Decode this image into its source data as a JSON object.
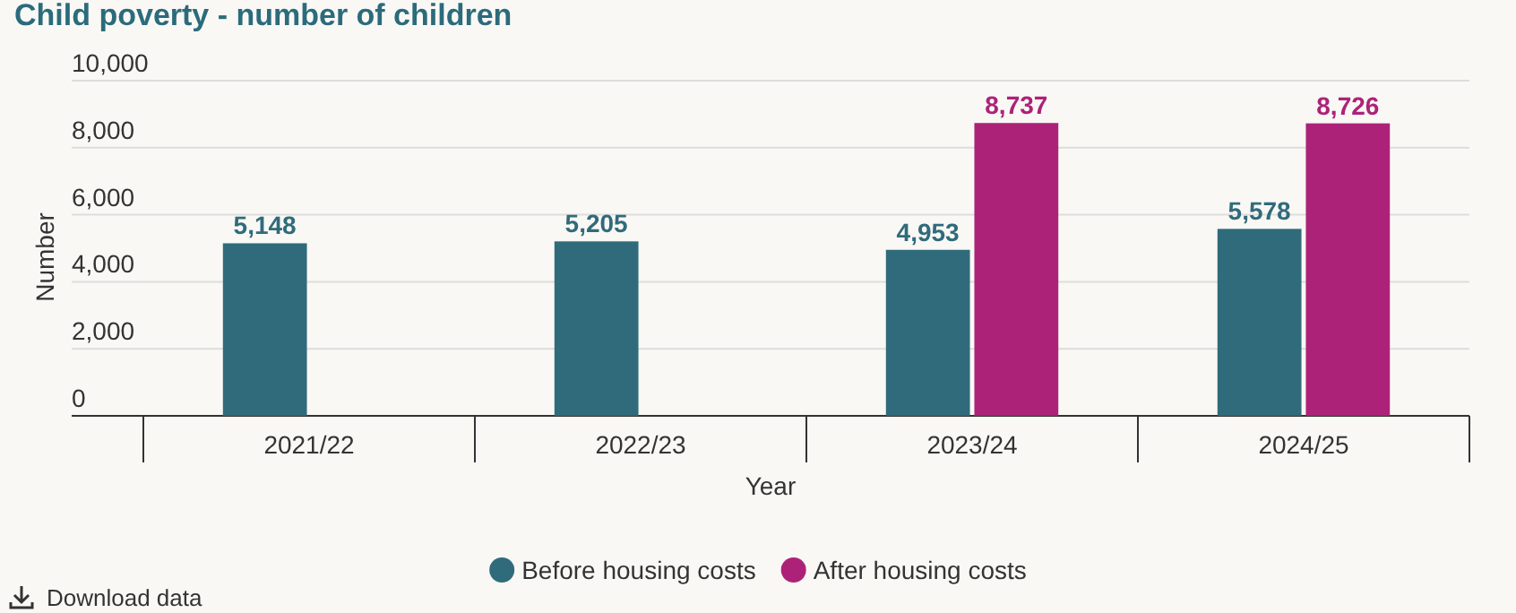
{
  "chart_data": {
    "type": "bar",
    "title": "Child poverty - number of children",
    "xlabel": "Year",
    "ylabel": "Number",
    "categories": [
      "2021/22",
      "2022/23",
      "2023/24",
      "2024/25"
    ],
    "series": [
      {
        "name": "Before housing costs",
        "color": "#306b7b",
        "values": [
          5148,
          5205,
          4953,
          5578
        ],
        "value_labels": [
          "5,148",
          "5,205",
          "4,953",
          "5,578"
        ]
      },
      {
        "name": "After housing costs",
        "color": "#ad2279",
        "values": [
          null,
          null,
          8737,
          8726
        ],
        "value_labels": [
          null,
          null,
          "8,737",
          "8,726"
        ]
      }
    ],
    "ylim": [
      0,
      10000
    ],
    "yticks": [
      0,
      {
        "value": 2000,
        "label": "2,000"
      },
      {
        "value": 4000,
        "label": "4,000"
      },
      {
        "value": 6000,
        "label": "6,000"
      },
      {
        "value": 8000,
        "label": "8,000"
      },
      {
        "value": 10000,
        "label": "10,000"
      }
    ],
    "grid": "y",
    "legend": "bottom",
    "annotations": [
      "Download data"
    ]
  }
}
